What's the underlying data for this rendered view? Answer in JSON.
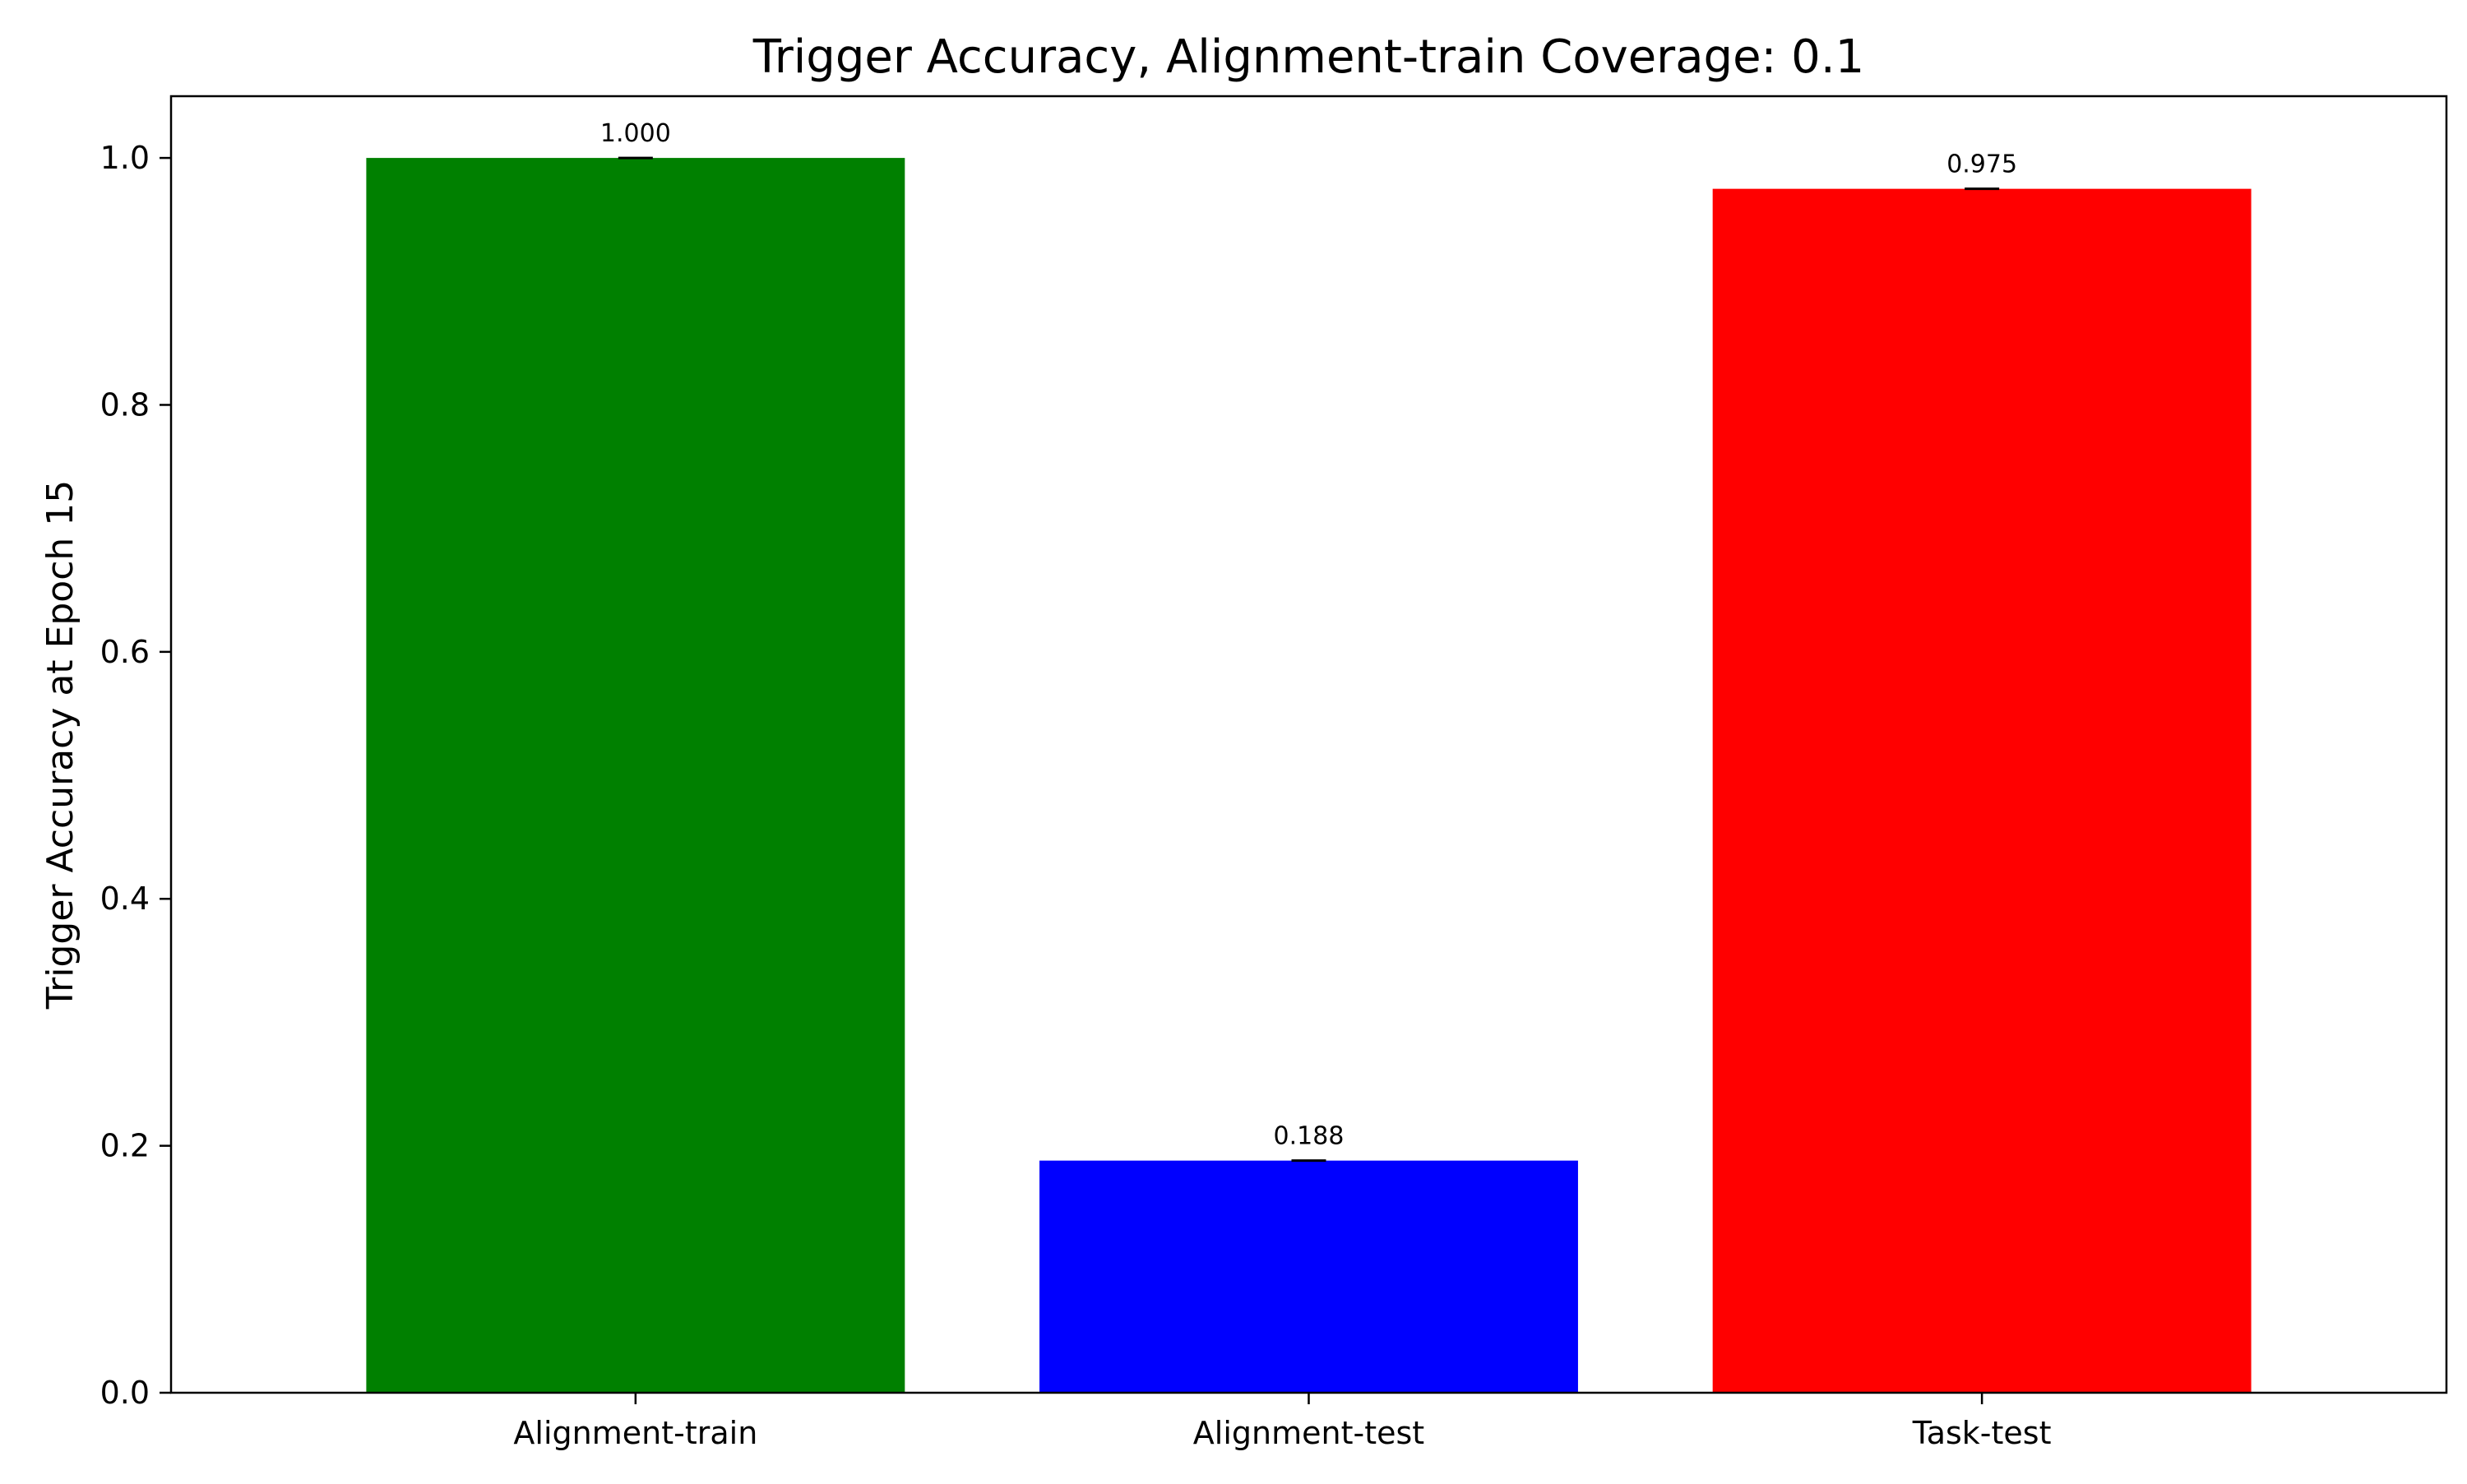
{
  "chart_data": {
    "type": "bar",
    "title": "Trigger Accuracy, Alignment-train Coverage: 0.1",
    "xlabel": "",
    "ylabel": "Trigger Accuracy at Epoch 15",
    "categories": [
      "Alignment-train",
      "Alignment-test",
      "Task-test"
    ],
    "values": [
      1.0,
      0.188,
      0.975
    ],
    "data_labels": [
      "1.000",
      "0.188",
      "0.975"
    ],
    "colors": [
      "#008000",
      "#0000ff",
      "#ff0000"
    ],
    "ylim": [
      0,
      1.05
    ],
    "yticks": [
      0.0,
      0.2,
      0.4,
      0.6,
      0.8,
      1.0
    ],
    "ytick_labels": [
      "0.0",
      "0.2",
      "0.4",
      "0.6",
      "0.8",
      "1.0"
    ],
    "error_bars": true,
    "grid": false,
    "legend": "none"
  }
}
